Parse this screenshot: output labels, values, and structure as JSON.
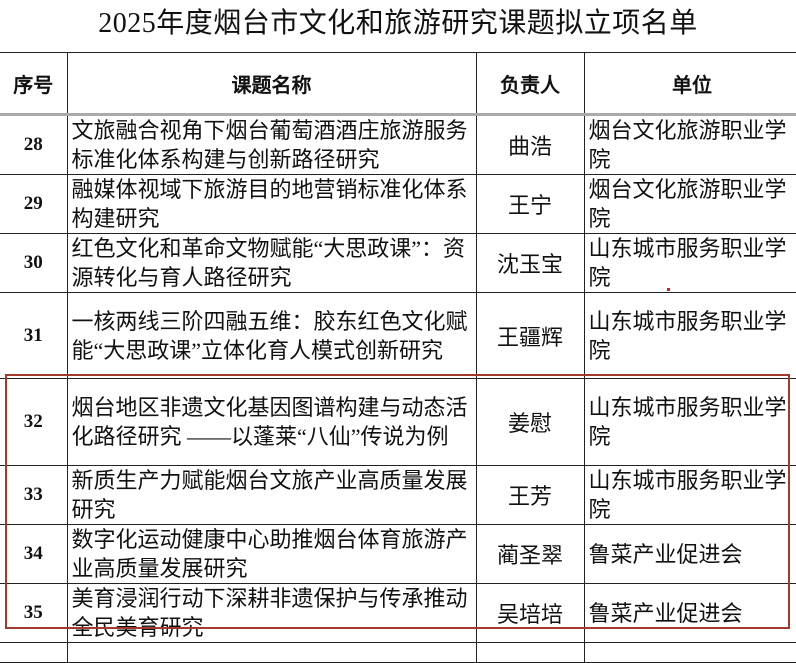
{
  "title": "2025年度烟台市文化和旅游研究课题拟立项名单",
  "columns": [
    "序号",
    "课题名称",
    "负责人",
    "单位"
  ],
  "rows": [
    {
      "num": "28",
      "topic": "文旅融合视角下烟台葡萄酒酒庄旅游服务标准化体系构建与创新路径研究",
      "person": "曲浩",
      "unit": "烟台文化旅游职业学院"
    },
    {
      "num": "29",
      "topic": "融媒体视域下旅游目的地营销标准化体系构建研究",
      "person": "王宁",
      "unit": "烟台文化旅游职业学院"
    },
    {
      "num": "30",
      "topic": "红色文化和革命文物赋能“大思政课”：资源转化与育人路径研究",
      "person": "沈玉宝",
      "unit": "山东城市服务职业学院"
    },
    {
      "num": "31",
      "topic": "一核两线三阶四融五维：胶东红色文化赋能“大思政课”立体化育人模式创新研究",
      "person": "王疆辉",
      "unit": "山东城市服务职业学院"
    },
    {
      "num": "32",
      "topic": "烟台地区非遗文化基因图谱构建与动态活化路径研究 ——以蓬莱“八仙”传说为例",
      "person": "姜慰",
      "unit": "山东城市服务职业学院"
    },
    {
      "num": "33",
      "topic": "新质生产力赋能烟台文旅产业高质量发展研究",
      "person": "王芳",
      "unit": "山东城市服务职业学院"
    },
    {
      "num": "34",
      "topic": "数字化运动健康中心助推烟台体育旅游产业高质量发展研究",
      "person": "蔺圣翠",
      "unit": "鲁菜产业促进会"
    },
    {
      "num": "35",
      "topic": "美育浸润行动下深耕非遗保护与传承推动全民美育研究",
      "person": "吴培培",
      "unit": "鲁菜产业促进会"
    }
  ],
  "highlight_color": "#a33a2e"
}
